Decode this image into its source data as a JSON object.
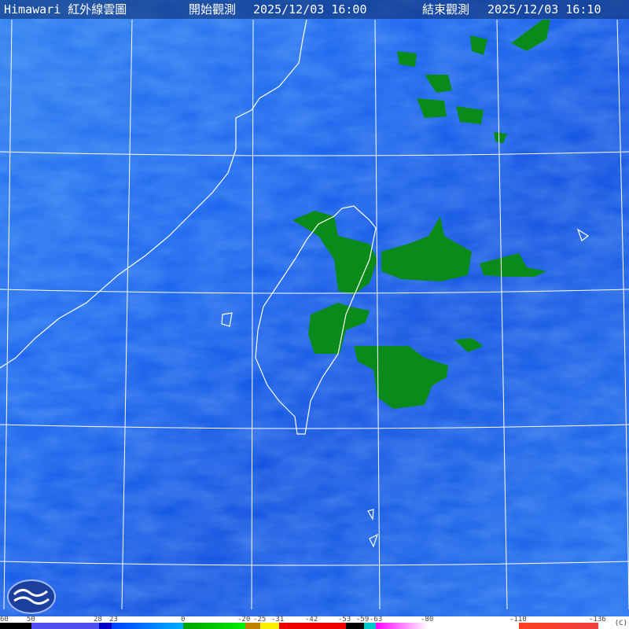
{
  "header": {
    "title": "Himawari 紅外線雲圖",
    "start_label": "開始觀測",
    "start_time": "2025/12/03 16:00",
    "end_label": "結束觀測",
    "end_time": "2025/12/03 16:10"
  },
  "legend": {
    "unit": "(C)",
    "ticks": [
      "60",
      "50",
      "28",
      "23",
      "0",
      "-20",
      "-25",
      "-31",
      "-42",
      "-53",
      "-59",
      "-63",
      "-80",
      "-110",
      "-136"
    ],
    "colors": {
      "warm": "#000000",
      "slate": "#5050f0",
      "deep_blue": "#0000c8",
      "blue_start": "#0040ff",
      "blue_end": "#00b0ff",
      "green_start": "#00a000",
      "green_end": "#00f000",
      "brown": "#c08000",
      "yellow": "#f8f000",
      "red": "#f00000",
      "black": "#000000",
      "cyan": "#00c8c8",
      "magenta": "#ff00ff",
      "white": "#ffffff",
      "orange_red": "#ff4020"
    }
  },
  "map": {
    "background_color": "#1a5fe8",
    "cloud_color": "#0a8a1a",
    "coastline_color": "#ffffff",
    "grid_color": "#ffffff"
  },
  "logo": {
    "icon": "weather-agency-logo-icon"
  }
}
